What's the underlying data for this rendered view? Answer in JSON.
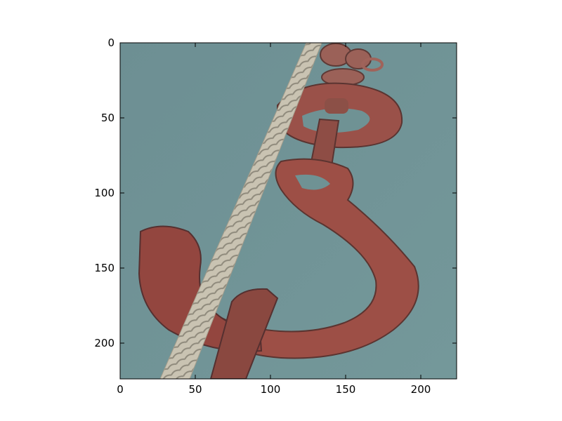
{
  "image": {
    "subject": "rusty-hook-and-rope",
    "background_color": "#6f9294",
    "hook_color": "#9a5048",
    "rope_color": "#c8c2b0"
  },
  "axes": {
    "x": {
      "ticks": [
        0,
        50,
        100,
        150,
        200
      ],
      "range": [
        0,
        224
      ]
    },
    "y": {
      "ticks": [
        0,
        50,
        100,
        150,
        200
      ],
      "range": [
        0,
        224
      ],
      "inverted": true
    }
  },
  "labels": {
    "x0": "0",
    "x50": "50",
    "x100": "100",
    "x150": "150",
    "x200": "200",
    "y0": "0",
    "y50": "50",
    "y100": "100",
    "y150": "150",
    "y200": "200"
  }
}
